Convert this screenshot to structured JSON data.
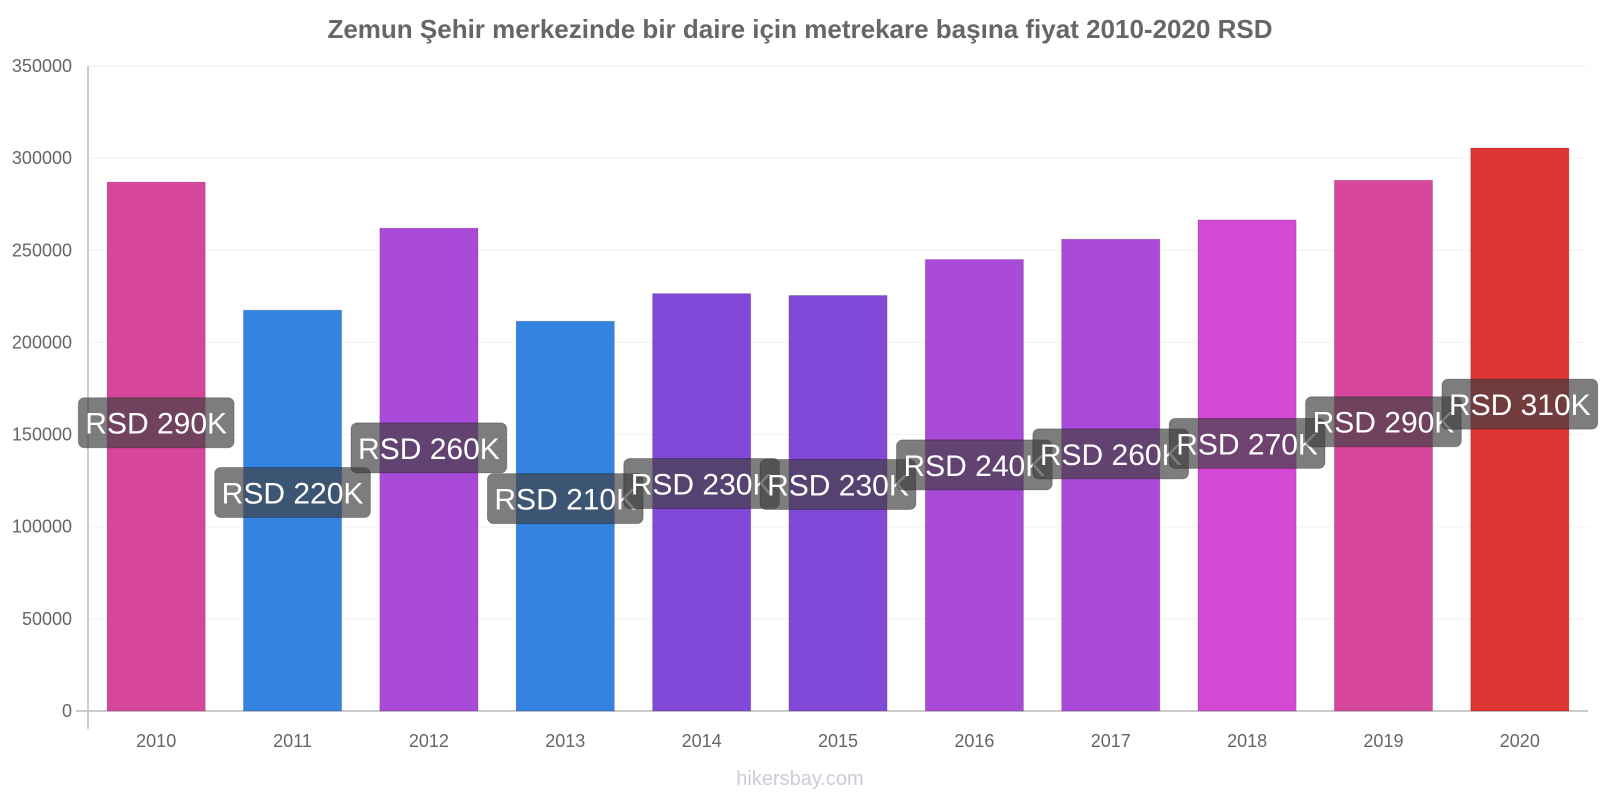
{
  "chart_data": {
    "type": "bar",
    "title": "Zemun Şehir merkezinde bir daire için metrekare başına fiyat 2010-2020 RSD",
    "categories": [
      "2010",
      "2011",
      "2012",
      "2013",
      "2014",
      "2015",
      "2016",
      "2017",
      "2018",
      "2019",
      "2020"
    ],
    "values": [
      287000,
      217500,
      262000,
      211500,
      226500,
      225500,
      245000,
      256000,
      266500,
      288000,
      305500
    ],
    "data_labels": [
      "RSD 290K",
      "RSD 220K",
      "RSD 260K",
      "RSD 210K",
      "RSD 230K",
      "RSD 230K",
      "RSD 240K",
      "RSD 260K",
      "RSD 270K",
      "RSD 290K",
      "RSD 310K"
    ],
    "bar_colors": [
      "#d6479b",
      "#3583e0",
      "#a94ad9",
      "#3583e0",
      "#8249d9",
      "#8249d9",
      "#a94ad9",
      "#a94ad9",
      "#d449d4",
      "#d6479b",
      "#e03535"
    ],
    "y_ticks": [
      "0",
      "50000",
      "100000",
      "150000",
      "200000",
      "250000",
      "300000",
      "350000"
    ],
    "ylim": [
      0,
      350000
    ],
    "xlabel": "",
    "ylabel": "",
    "grid": true,
    "legend": "none"
  },
  "watermark": "hikersbay.com"
}
